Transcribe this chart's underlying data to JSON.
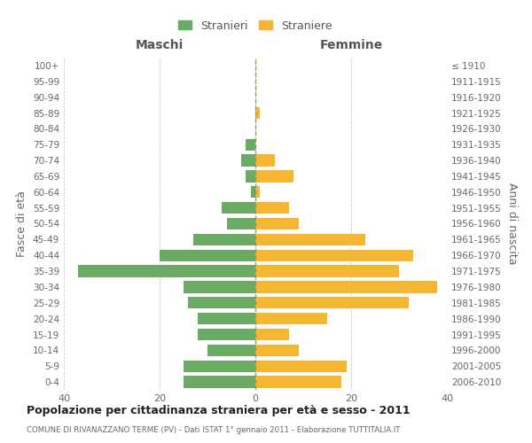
{
  "age_groups": [
    "0-4",
    "5-9",
    "10-14",
    "15-19",
    "20-24",
    "25-29",
    "30-34",
    "35-39",
    "40-44",
    "45-49",
    "50-54",
    "55-59",
    "60-64",
    "65-69",
    "70-74",
    "75-79",
    "80-84",
    "85-89",
    "90-94",
    "95-99",
    "100+"
  ],
  "birth_years": [
    "2006-2010",
    "2001-2005",
    "1996-2000",
    "1991-1995",
    "1986-1990",
    "1981-1985",
    "1976-1980",
    "1971-1975",
    "1966-1970",
    "1961-1965",
    "1956-1960",
    "1951-1955",
    "1946-1950",
    "1941-1945",
    "1936-1940",
    "1931-1935",
    "1926-1930",
    "1921-1925",
    "1916-1920",
    "1911-1915",
    "≤ 1910"
  ],
  "males": [
    15,
    15,
    10,
    12,
    12,
    14,
    15,
    37,
    20,
    13,
    6,
    7,
    1,
    2,
    3,
    2,
    0,
    0,
    0,
    0,
    0
  ],
  "females": [
    18,
    19,
    9,
    7,
    15,
    32,
    38,
    30,
    33,
    23,
    9,
    7,
    1,
    8,
    4,
    0,
    0,
    1,
    0,
    0,
    0
  ],
  "male_color": "#6aaa64",
  "female_color": "#f5b731",
  "background_color": "#ffffff",
  "grid_color": "#cccccc",
  "title": "Popolazione per cittadinanza straniera per età e sesso - 2011",
  "subtitle": "COMUNE DI RIVANAZZANO TERME (PV) - Dati ISTAT 1° gennaio 2011 - Elaborazione TUTTITALIA.IT",
  "xlabel_left": "Maschi",
  "xlabel_right": "Femmine",
  "ylabel_left": "Fasce di età",
  "ylabel_right": "Anni di nascita",
  "legend_male": "Stranieri",
  "legend_female": "Straniere",
  "xlim": 40,
  "center_line_color": "#999966"
}
